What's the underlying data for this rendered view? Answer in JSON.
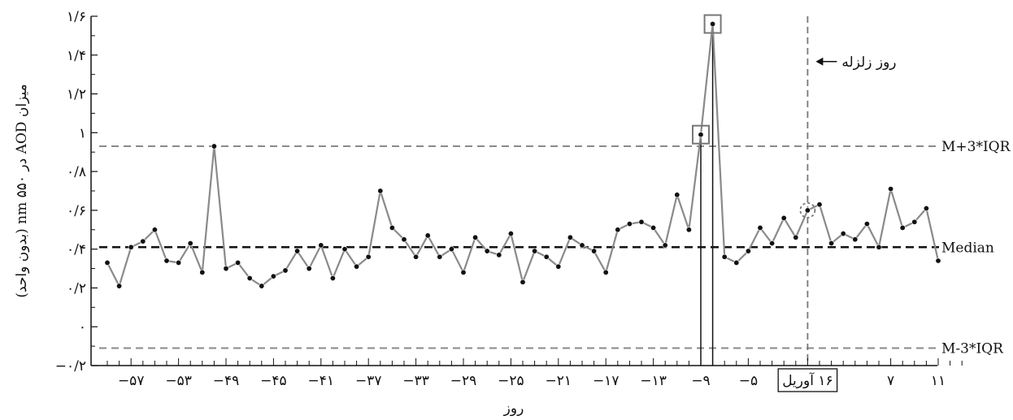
{
  "chart_data": {
    "type": "line",
    "title": "",
    "xlabel": "روز",
    "ylabel": "میزان AOD در ۵۵۰ nm (بدون واحد)",
    "xlim": [
      -60,
      13
    ],
    "ylim": [
      -0.2,
      1.6
    ],
    "grid": false,
    "x_ticks": [
      {
        "value": -57,
        "label": "−۵۷"
      },
      {
        "value": -53,
        "label": "−۵۳"
      },
      {
        "value": -49,
        "label": "−۴۹"
      },
      {
        "value": -45,
        "label": "−۴۵"
      },
      {
        "value": -41,
        "label": "−۴۱"
      },
      {
        "value": -37,
        "label": "−۳۷"
      },
      {
        "value": -33,
        "label": "−۳۳"
      },
      {
        "value": -29,
        "label": "−۲۹"
      },
      {
        "value": -25,
        "label": "−۲۵"
      },
      {
        "value": -21,
        "label": "−۲۱"
      },
      {
        "value": -17,
        "label": "−۱۷"
      },
      {
        "value": -13,
        "label": "−۱۳"
      },
      {
        "value": -9,
        "label": "−۹"
      },
      {
        "value": -5,
        "label": "−۵"
      },
      {
        "value": 0,
        "label": "۱۶ آوریل",
        "boxed": true
      },
      {
        "value": 7,
        "label": "۷"
      },
      {
        "value": 11,
        "label": "۱۱"
      }
    ],
    "y_ticks": [
      {
        "value": -0.2,
        "label": "−۰/۲"
      },
      {
        "value": 0,
        "label": "۰"
      },
      {
        "value": 0.2,
        "label": "۰/۲"
      },
      {
        "value": 0.4,
        "label": "۰/۴"
      },
      {
        "value": 0.6,
        "label": "۰/۶"
      },
      {
        "value": 0.8,
        "label": "۰/۸"
      },
      {
        "value": 1,
        "label": "۱"
      },
      {
        "value": 1.2,
        "label": "۱/۲"
      },
      {
        "value": 1.4,
        "label": "۱/۴"
      },
      {
        "value": 1.6,
        "label": "۱/۶"
      }
    ],
    "series": [
      {
        "color": "#8a8a8a",
        "marker_color": "#111111",
        "x": [
          -59,
          -58,
          -57,
          -56,
          -55,
          -54,
          -53,
          -52,
          -51,
          -50,
          -49,
          -48,
          -47,
          -46,
          -45,
          -44,
          -43,
          -42,
          -41,
          -40,
          -39,
          -38,
          -37,
          -36,
          -35,
          -34,
          -33,
          -32,
          -31,
          -30,
          -29,
          -28,
          -27,
          -26,
          -25,
          -24,
          -23,
          -22,
          -21,
          -20,
          -19,
          -18,
          -17,
          -16,
          -15,
          -14,
          -13,
          -12,
          -11,
          -10,
          -9,
          -8,
          -7,
          -6,
          -5,
          -4,
          -3,
          -2,
          -1,
          0,
          1,
          2,
          3,
          4,
          5,
          6,
          7,
          8,
          9,
          10,
          11
        ],
        "y": [
          0.33,
          0.21,
          0.41,
          0.44,
          0.5,
          0.34,
          0.33,
          0.43,
          0.28,
          0.93,
          0.3,
          0.33,
          0.25,
          0.21,
          0.26,
          0.29,
          0.39,
          0.3,
          0.42,
          0.25,
          0.4,
          0.31,
          0.36,
          0.7,
          0.51,
          0.45,
          0.36,
          0.47,
          0.36,
          0.4,
          0.28,
          0.46,
          0.39,
          0.37,
          0.48,
          0.23,
          0.39,
          0.36,
          0.31,
          0.46,
          0.42,
          0.39,
          0.28,
          0.5,
          0.53,
          0.54,
          0.51,
          0.42,
          0.68,
          0.5,
          0.99,
          1.56,
          0.36,
          0.33,
          0.39,
          0.51,
          0.43,
          0.56,
          0.46,
          0.6,
          0.63,
          0.43,
          0.48,
          0.45,
          0.53,
          0.41,
          0.71,
          0.51,
          0.54,
          0.61,
          0.34
        ]
      }
    ],
    "reference_lines": [
      {
        "label": "M+3*IQR",
        "value": 0.93,
        "style": "dashed",
        "color": "#8a8a8a"
      },
      {
        "label": "Median",
        "value": 0.41,
        "style": "dashed",
        "color": "#111111"
      },
      {
        "label": "M-3*IQR",
        "value": -0.11,
        "style": "dashed",
        "color": "#8a8a8a"
      }
    ],
    "earthquake_line": {
      "x": 0,
      "label": "روز زلزله",
      "label_y": 1.4
    },
    "highlighted_points": [
      {
        "x": -9,
        "y": 0.99,
        "shape": "square"
      },
      {
        "x": -8,
        "y": 1.56,
        "shape": "square"
      },
      {
        "x": 0,
        "y": 0.6,
        "shape": "dashed-circle"
      }
    ]
  }
}
